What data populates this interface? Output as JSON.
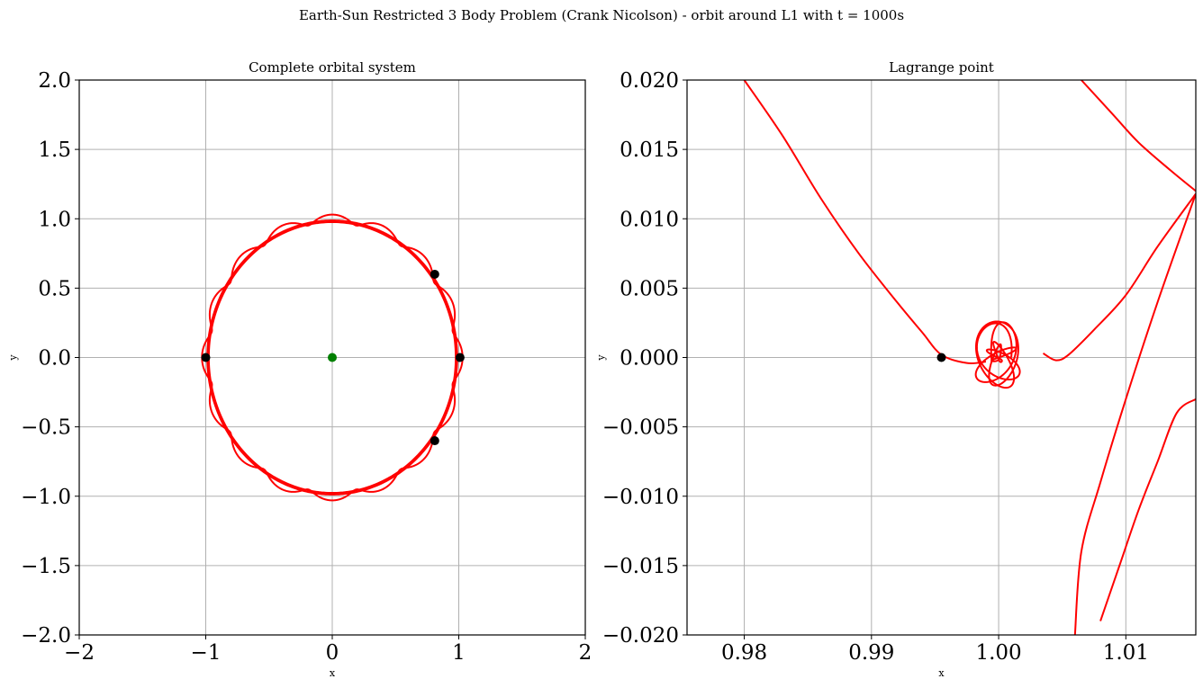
{
  "figure": {
    "suptitle": "Earth-Sun Restricted 3 Body Problem (Crank Nicolson) - orbit around L1 with t = 1000s"
  },
  "chart_data": [
    {
      "type": "line",
      "title": "Complete orbital system",
      "xlabel": "x",
      "ylabel": "y",
      "xlim": [
        -2,
        2
      ],
      "ylim": [
        -2,
        2
      ],
      "xticks": [
        -2,
        -1,
        0,
        1,
        2
      ],
      "xtick_labels": [
        "−2",
        "−1",
        "0",
        "1",
        "2"
      ],
      "yticks": [
        -2,
        -1.5,
        -1,
        -0.5,
        0,
        0.5,
        1,
        1.5,
        2
      ],
      "ytick_labels": [
        "−2.0",
        "−1.5",
        "−1.0",
        "−0.5",
        "0.0",
        "0.5",
        "1.0",
        "1.5",
        "2.0"
      ],
      "grid": true,
      "series": [
        {
          "kind": "trajectory",
          "color": "#ff0000",
          "description": "orbit of ~1 AU radius with small epicycle loops",
          "radius": 1.0,
          "loop_count": 16,
          "loop_amplitude": 0.03
        }
      ],
      "points": [
        {
          "x": 0.0,
          "y": 0.0,
          "color": "#008000"
        },
        {
          "x": 0.81,
          "y": 0.6,
          "color": "#000000"
        },
        {
          "x": 0.81,
          "y": -0.6,
          "color": "#000000"
        },
        {
          "x": 1.01,
          "y": 0.0,
          "color": "#000000"
        },
        {
          "x": -1.0,
          "y": 0.0,
          "color": "#000000"
        }
      ]
    },
    {
      "type": "line",
      "title": "Lagrange point",
      "xlabel": "x",
      "ylabel": "y",
      "xlim": [
        0.9755,
        1.0155
      ],
      "ylim": [
        -0.02,
        0.02
      ],
      "xticks": [
        0.98,
        0.99,
        1.0,
        1.01
      ],
      "xtick_labels": [
        "0.98",
        "0.99",
        "1.00",
        "1.01"
      ],
      "yticks": [
        -0.02,
        -0.015,
        -0.01,
        -0.005,
        0.0,
        0.005,
        0.01,
        0.015,
        0.02
      ],
      "ytick_labels": [
        "−0.020",
        "−0.015",
        "−0.010",
        "−0.005",
        "0.000",
        "0.005",
        "0.010",
        "0.015",
        "0.020"
      ],
      "grid": true,
      "series": [
        {
          "kind": "curve",
          "color": "#ff0000",
          "points": [
            [
              0.98,
              0.02
            ],
            [
              0.983,
              0.016
            ],
            [
              0.986,
              0.0115
            ],
            [
              0.989,
              0.0075
            ],
            [
              0.992,
              0.004
            ],
            [
              0.994,
              0.0018
            ],
            [
              0.9955,
              0.0002
            ],
            [
              0.9975,
              -0.0004
            ],
            [
              0.999,
              -0.0003
            ]
          ]
        },
        {
          "kind": "tangle",
          "color": "#ff0000",
          "center": [
            1.0,
            0.0
          ],
          "x_radius": 0.0018,
          "y_radius": 0.0026
        },
        {
          "kind": "curve",
          "color": "#ff0000",
          "points": [
            [
              1.0035,
              0.0003
            ],
            [
              1.0045,
              -0.0002
            ],
            [
              1.0055,
              0.0002
            ],
            [
              1.0075,
              0.002
            ],
            [
              1.01,
              0.0045
            ],
            [
              1.0125,
              0.008
            ],
            [
              1.0155,
              0.0118
            ]
          ]
        },
        {
          "kind": "curve",
          "color": "#ff0000",
          "points": [
            [
              1.0155,
              0.0118
            ],
            [
              1.0125,
              0.004
            ],
            [
              1.01,
              -0.003
            ],
            [
              1.008,
              -0.009
            ],
            [
              1.0065,
              -0.014
            ],
            [
              1.006,
              -0.02
            ]
          ]
        },
        {
          "kind": "curve",
          "color": "#ff0000",
          "points": [
            [
              1.0155,
              0.012
            ],
            [
              1.0135,
              0.0135
            ],
            [
              1.011,
              0.0155
            ],
            [
              1.009,
              0.0175
            ],
            [
              1.0065,
              0.02
            ]
          ]
        },
        {
          "kind": "curve",
          "color": "#ff0000",
          "points": [
            [
              1.0155,
              -0.003
            ],
            [
              1.014,
              -0.004
            ],
            [
              1.0125,
              -0.0075
            ],
            [
              1.011,
              -0.011
            ],
            [
              1.0095,
              -0.015
            ],
            [
              1.008,
              -0.019
            ]
          ]
        }
      ],
      "points": [
        {
          "x": 0.9955,
          "y": 0.0,
          "color": "#000000"
        }
      ]
    }
  ]
}
